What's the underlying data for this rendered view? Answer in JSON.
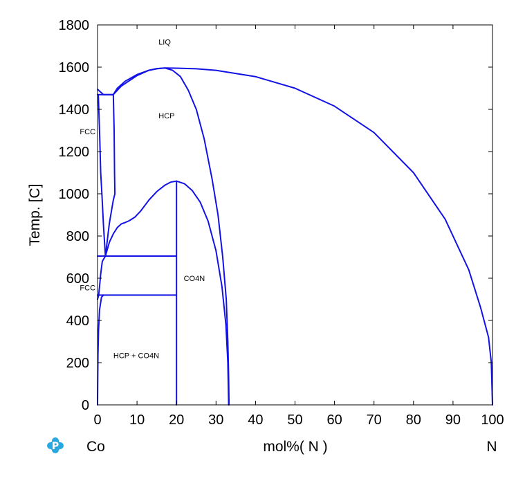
{
  "chart_data": {
    "type": "line",
    "title": "",
    "ylabel": "Temp.  [C]",
    "xlabel": "mol%(  N  )",
    "x_left_label": "Co",
    "x_right_label": "N",
    "xlim": [
      0,
      100
    ],
    "ylim": [
      0,
      1800
    ],
    "xticks": [
      0,
      10,
      20,
      30,
      40,
      50,
      60,
      70,
      80,
      90,
      100
    ],
    "yticks": [
      0,
      200,
      400,
      600,
      800,
      1000,
      1200,
      1400,
      1600,
      1800
    ],
    "grid": false,
    "line_color": "#1212e6",
    "logo_icon": "pandat-logo-icon",
    "regions": [
      {
        "label": "LIQ",
        "x": 17,
        "y": 1720
      },
      {
        "label": "HCP",
        "x": 17.5,
        "y": 1370
      },
      {
        "label": "FCC",
        "x": -2.5,
        "y": 1295
      },
      {
        "label": "FCC",
        "x": -2.5,
        "y": 555
      },
      {
        "label": "CO4N",
        "x": 24.5,
        "y": 600
      },
      {
        "label": "HCP + CO4N",
        "x": 9.8,
        "y": 235
      }
    ],
    "series": [
      {
        "points": [
          [
            0,
            1495
          ],
          [
            1.5,
            1470
          ],
          [
            4,
            1470
          ]
        ]
      },
      {
        "points": [
          [
            0,
            1470
          ],
          [
            4,
            1470
          ]
        ]
      },
      {
        "points": [
          [
            4,
            1470
          ],
          [
            5,
            1500
          ],
          [
            7,
            1533
          ],
          [
            10,
            1565
          ],
          [
            13,
            1585
          ],
          [
            15,
            1592
          ],
          [
            17,
            1596
          ],
          [
            20,
            1595
          ],
          [
            25,
            1592
          ],
          [
            30,
            1585
          ],
          [
            40,
            1555
          ],
          [
            50,
            1500
          ],
          [
            60,
            1415
          ],
          [
            70,
            1290
          ],
          [
            80,
            1100
          ],
          [
            88,
            880
          ],
          [
            94,
            640
          ],
          [
            97,
            460
          ],
          [
            99,
            320
          ],
          [
            99.7,
            200
          ],
          [
            100,
            0
          ]
        ]
      },
      {
        "points": [
          [
            4,
            1470
          ],
          [
            6,
            1510
          ],
          [
            10,
            1560
          ],
          [
            13,
            1585
          ],
          [
            15,
            1593
          ],
          [
            17,
            1596
          ],
          [
            19,
            1585
          ],
          [
            21,
            1555
          ],
          [
            23,
            1490
          ],
          [
            25,
            1400
          ],
          [
            27,
            1260
          ],
          [
            29,
            1070
          ],
          [
            30.5,
            900
          ],
          [
            31.7,
            700
          ],
          [
            32.6,
            500
          ],
          [
            33,
            300
          ],
          [
            33.2,
            120
          ],
          [
            33.3,
            0
          ]
        ]
      },
      {
        "points": [
          [
            0.2,
            1470
          ],
          [
            0.5,
            1300
          ],
          [
            0.8,
            1100
          ],
          [
            1.1,
            1000
          ],
          [
            1.5,
            850
          ],
          [
            2,
            705
          ]
        ]
      },
      {
        "points": [
          [
            4,
            1470
          ],
          [
            4.2,
            1300
          ],
          [
            4.3,
            1100
          ],
          [
            4.4,
            1000
          ],
          [
            4,
            970
          ],
          [
            3,
            860
          ],
          [
            2,
            705
          ]
        ]
      },
      {
        "points": [
          [
            2,
            705
          ],
          [
            3,
            770
          ],
          [
            4,
            810
          ],
          [
            5,
            840
          ],
          [
            6,
            857
          ],
          [
            7,
            864
          ],
          [
            8,
            872
          ],
          [
            9.5,
            890
          ],
          [
            11,
            920
          ],
          [
            13,
            970
          ],
          [
            15,
            1010
          ],
          [
            17,
            1040
          ],
          [
            18.5,
            1055
          ],
          [
            20,
            1060
          ]
        ]
      },
      {
        "points": [
          [
            20,
            1060
          ],
          [
            22,
            1048
          ],
          [
            24,
            1015
          ],
          [
            26,
            960
          ],
          [
            28,
            870
          ],
          [
            30,
            730
          ],
          [
            31.5,
            560
          ],
          [
            32.5,
            380
          ],
          [
            33,
            200
          ],
          [
            33.2,
            0
          ]
        ]
      },
      {
        "points": [
          [
            20,
            1060
          ],
          [
            20,
            0
          ]
        ]
      },
      {
        "points": [
          [
            0,
            705
          ],
          [
            20,
            705
          ]
        ]
      },
      {
        "points": [
          [
            0,
            520
          ],
          [
            20,
            520
          ]
        ]
      },
      {
        "points": [
          [
            0,
            500
          ],
          [
            0.3,
            520
          ],
          [
            0.5,
            560
          ],
          [
            0.8,
            620
          ],
          [
            1.2,
            680
          ],
          [
            2,
            705
          ]
        ]
      },
      {
        "points": [
          [
            0,
            0
          ],
          [
            0.1,
            230
          ],
          [
            0.25,
            350
          ],
          [
            0.5,
            450
          ],
          [
            1,
            510
          ],
          [
            1.5,
            520
          ]
        ]
      }
    ]
  }
}
